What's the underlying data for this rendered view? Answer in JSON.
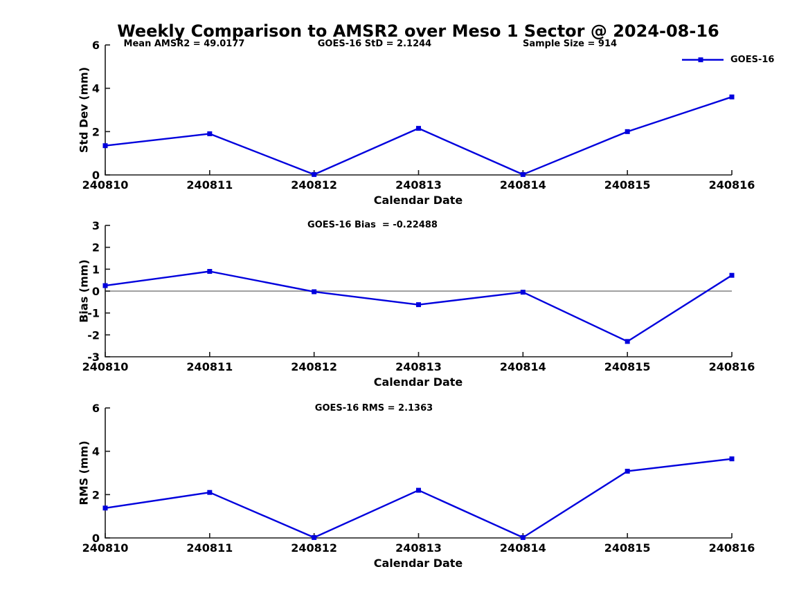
{
  "title": "Weekly Comparison to AMSR2 over Meso 1 Sector @ 2024-08-16",
  "colors": {
    "line": "#0000dd",
    "axis": "#1a1a1a",
    "text": "#000000",
    "zero_line": "#808080"
  },
  "legend": {
    "label": "GOES-16"
  },
  "chart_data": [
    {
      "type": "line",
      "name": "std_dev",
      "title": "",
      "x": [
        "240810",
        "240811",
        "240812",
        "240813",
        "240814",
        "240815",
        "240816"
      ],
      "series": [
        {
          "name": "GOES-16",
          "values": [
            1.35,
            1.9,
            0.02,
            2.15,
            0.02,
            2.0,
            3.6
          ]
        }
      ],
      "xlabel": "Calendar Date",
      "ylabel": "Std Dev (mm)",
      "ylim": [
        0,
        6
      ],
      "yticks": [
        0,
        2,
        4,
        6
      ],
      "grid": false,
      "legend_position": "top-right",
      "annotations": [
        {
          "text": "Mean AMSR2 = 49.0177"
        },
        {
          "text": "GOES-16 StD = 2.1244"
        },
        {
          "text": "Sample Size = 914"
        }
      ]
    },
    {
      "type": "line",
      "name": "bias",
      "title": "",
      "x": [
        "240810",
        "240811",
        "240812",
        "240813",
        "240814",
        "240815",
        "240816"
      ],
      "series": [
        {
          "name": "GOES-16",
          "values": [
            0.25,
            0.9,
            -0.03,
            -0.62,
            -0.05,
            -2.3,
            0.72
          ]
        }
      ],
      "xlabel": "Calendar Date",
      "ylabel": "Bias (mm)",
      "ylim": [
        -3,
        3
      ],
      "yticks": [
        -3,
        -2,
        -1,
        0,
        1,
        2,
        3
      ],
      "grid": false,
      "zero_line": true,
      "annotations": [
        {
          "text": "GOES-16 Bias  = -0.22488"
        }
      ]
    },
    {
      "type": "line",
      "name": "rms",
      "title": "",
      "x": [
        "240810",
        "240811",
        "240812",
        "240813",
        "240814",
        "240815",
        "240816"
      ],
      "series": [
        {
          "name": "GOES-16",
          "values": [
            1.38,
            2.1,
            0.02,
            2.2,
            0.02,
            3.08,
            3.65
          ]
        }
      ],
      "xlabel": "Calendar Date",
      "ylabel": "RMS (mm)",
      "ylim": [
        0,
        6
      ],
      "yticks": [
        0,
        2,
        4,
        6
      ],
      "grid": false,
      "annotations": [
        {
          "text": "GOES-16 RMS = 2.1363"
        }
      ]
    }
  ]
}
